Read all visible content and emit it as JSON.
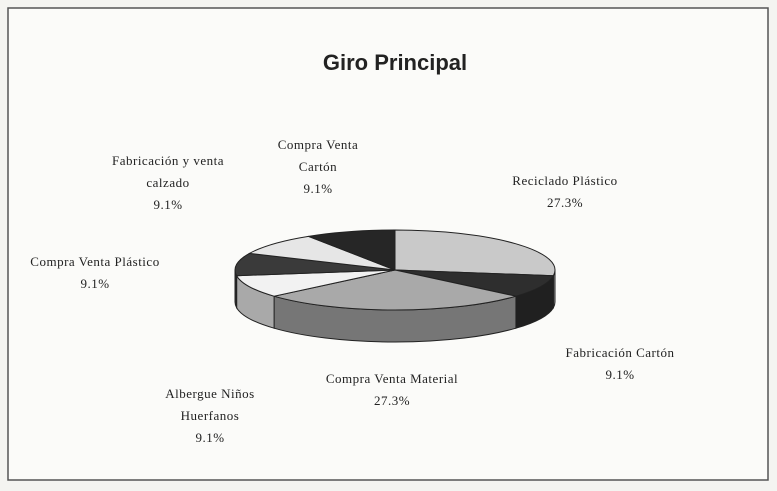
{
  "chart_data": {
    "type": "pie3d",
    "title": "Giro Principal",
    "categories": [
      "Reciclado Plástico",
      "Fabricación Cartón",
      "Compra Venta Material",
      "Albergue Niños Huerfanos",
      "Compra Venta Plástico",
      "Fabricación y venta calzado",
      "Compra Venta Cartón"
    ],
    "values": [
      27.3,
      9.1,
      27.3,
      9.1,
      9.1,
      9.1,
      9.1
    ],
    "value_labels": [
      "27.3%",
      "9.1%",
      "27.3%",
      "9.1%",
      "9.1%",
      "9.1%",
      "9.1%"
    ],
    "colors": [
      "#c9c9c9",
      "#2e2e2e",
      "#a9a9a9",
      "#f2f2f2",
      "#3a3a3a",
      "#e6e6e6",
      "#262626"
    ]
  }
}
